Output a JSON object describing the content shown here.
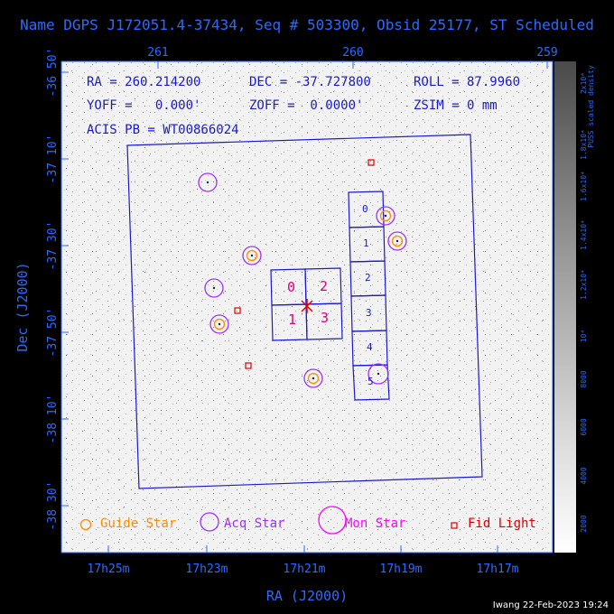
{
  "title": "Name DGPS J172051.4-37434, Seq # 503300, Obsid 25177, ST Scheduled",
  "axes": {
    "x_label": "RA (J2000)",
    "y_label": "Dec (J2000)",
    "x_top_ticks": [
      "261",
      "260",
      "259"
    ],
    "x_bottom_ticks": [
      "17h25m",
      "17h23m",
      "17h21m",
      "17h19m",
      "17h17m"
    ],
    "y_ticks": [
      "-36 50'",
      "-37 10'",
      "-37 30'",
      "-37 50'",
      "-38 10'",
      "-38 30'"
    ]
  },
  "info": {
    "ra": "RA = 260.214200",
    "dec": "DEC = -37.727800",
    "roll": "ROLL = 87.9960",
    "yoff": "YOFF =   0.000'",
    "zoff": "ZOFF =  0.0000'",
    "zsim": "ZSIM = 0 mm",
    "acis": "ACIS PB = WT00866024"
  },
  "ccd_labels": {
    "acis_i": [
      "0",
      "2",
      "1",
      "3"
    ],
    "acis_s": [
      "0",
      "1",
      "2",
      "3",
      "4",
      "5"
    ]
  },
  "legend": {
    "guide": "Guide Star",
    "acq": "Acq Star",
    "mon": "Mon Star",
    "fid": "Fid Light"
  },
  "colorbar": {
    "label": "PUSS scaled density",
    "ticks": [
      "2x10⁴",
      "1.8x10⁴",
      "1.6x10⁴",
      "1.4x10⁴",
      "1.2x10⁴",
      "10⁴",
      "8000",
      "6000",
      "4000",
      "2000"
    ]
  },
  "colors": {
    "axis": "#2a6bff",
    "guide": "#ff8c00",
    "acq": "#9b30ff",
    "mon": "#ff00ff",
    "fid": "#e00000",
    "ccd": "#1a1acd"
  },
  "footer": "Iwang 22-Feb-2023 19:24"
}
